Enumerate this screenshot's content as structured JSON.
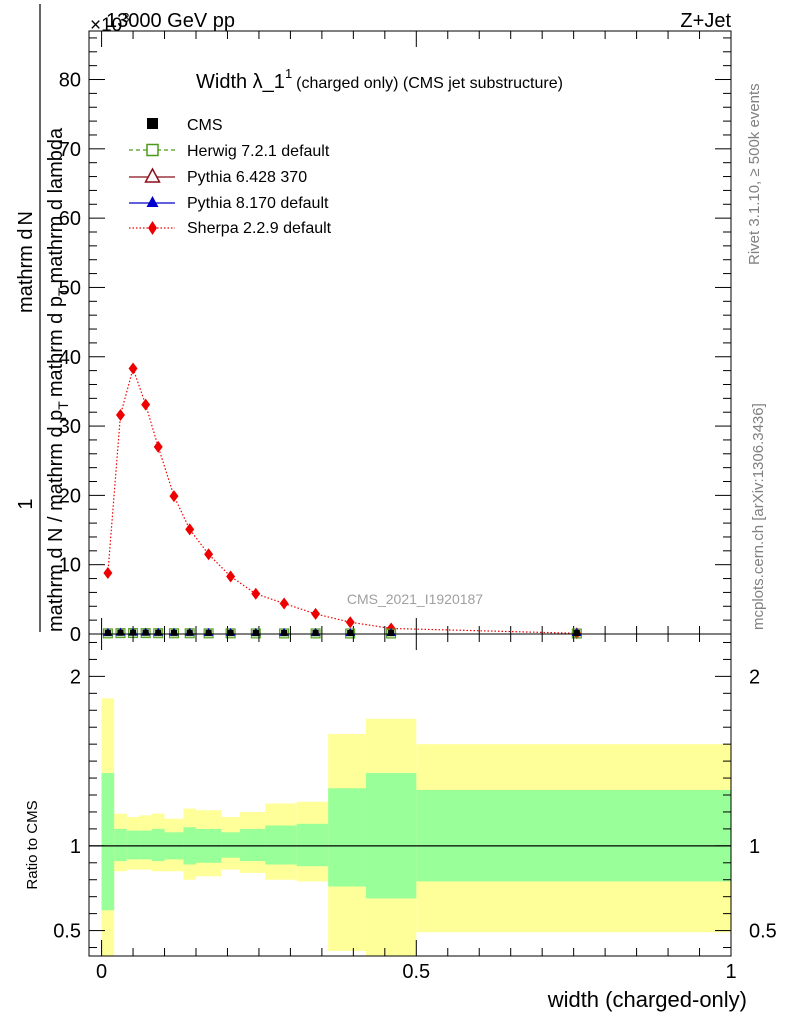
{
  "header": {
    "left": "13000 GeV pp",
    "right": "Z+Jet",
    "exponent": "×10",
    "exponent_power": "3"
  },
  "side_labels": {
    "rivet": "Rivet 3.1.10, ≥ 500k events",
    "mcplots": "mcplots.cern.ch [arXiv:1306.3436]"
  },
  "watermark": "CMS_2021_I1920187",
  "chart_data": [
    {
      "type": "line",
      "title": "Width λ_1",
      "title_sup": "1",
      "title_suffix": "(charged only) (CMS jet substructure)",
      "ylabel_parts": [
        "1",
        "mathrm d N / mathrm d p",
        "T",
        "mathrm d p",
        "T",
        "mathrm d lambda",
        "mathrm d",
        "N"
      ],
      "ylim": [
        0,
        87
      ],
      "yticks": [
        0,
        10,
        20,
        30,
        40,
        50,
        60,
        70,
        80
      ],
      "xlim": [
        -0.02,
        1.0
      ],
      "legend_position": "top-left",
      "legend": [
        {
          "name": "CMS",
          "color": "#000000",
          "marker": "square-filled",
          "line": "none"
        },
        {
          "name": "Herwig 7.2.1 default",
          "color": "#4d9a1a",
          "marker": "square-open",
          "line": "dashed"
        },
        {
          "name": "Pythia 6.428 370",
          "color": "#8b0f1a",
          "marker": "triangle-open",
          "line": "solid"
        },
        {
          "name": "Pythia 8.170 default",
          "color": "#0000cc",
          "marker": "triangle-filled",
          "line": "solid"
        },
        {
          "name": "Sherpa 2.2.9 default",
          "color": "#ee0000",
          "marker": "diamond",
          "line": "dotted"
        }
      ],
      "series": [
        {
          "name": "Sherpa 2.2.9 default",
          "color": "#ee0000",
          "x": [
            0.01,
            0.03,
            0.05,
            0.07,
            0.09,
            0.115,
            0.14,
            0.17,
            0.205,
            0.245,
            0.29,
            0.34,
            0.395,
            0.46,
            0.755
          ],
          "y": [
            8.8,
            31.6,
            38.3,
            33.1,
            27.0,
            19.9,
            15.1,
            11.5,
            8.3,
            5.8,
            4.4,
            2.9,
            1.7,
            0.8,
            0.1
          ]
        },
        {
          "name": "CMS",
          "color": "#000000",
          "x": [
            0.01,
            0.03,
            0.05,
            0.07,
            0.09,
            0.115,
            0.14,
            0.17,
            0.205,
            0.245,
            0.29,
            0.34,
            0.395,
            0.46,
            0.755
          ],
          "y": [
            0.02,
            0.05,
            0.06,
            0.05,
            0.04,
            0.03,
            0.03,
            0.02,
            0.02,
            0.01,
            0.01,
            0.01,
            0.0,
            0.0,
            0.0
          ]
        }
      ]
    },
    {
      "type": "area",
      "ylabel": "Ratio to CMS",
      "ylim": [
        0.35,
        2.25
      ],
      "yticks": [
        0.5,
        1,
        2
      ],
      "ytick_labels": [
        "0.5",
        "1",
        "2"
      ],
      "xlim": [
        -0.02,
        1.0
      ],
      "xticks": [
        0,
        0.5,
        1
      ],
      "xtick_labels": [
        "0",
        "0.5",
        "1"
      ],
      "xlabel": "width (charged-only)",
      "band_colors": {
        "outer": "#ffff99",
        "inner": "#99ff99",
        "reference_line": "#000000"
      },
      "bins": [
        {
          "x0": 0.0,
          "x1": 0.02,
          "outer": [
            0.3,
            1.87
          ],
          "inner": [
            0.62,
            1.43
          ]
        },
        {
          "x0": 0.02,
          "x1": 0.04,
          "outer": [
            0.85,
            1.19
          ],
          "inner": [
            0.91,
            1.1
          ]
        },
        {
          "x0": 0.04,
          "x1": 0.06,
          "outer": [
            0.86,
            1.17
          ],
          "inner": [
            0.92,
            1.09
          ]
        },
        {
          "x0": 0.06,
          "x1": 0.08,
          "outer": [
            0.86,
            1.18
          ],
          "inner": [
            0.92,
            1.09
          ]
        },
        {
          "x0": 0.08,
          "x1": 0.1,
          "outer": [
            0.85,
            1.19
          ],
          "inner": [
            0.91,
            1.1
          ]
        },
        {
          "x0": 0.1,
          "x1": 0.13,
          "outer": [
            0.85,
            1.16
          ],
          "inner": [
            0.92,
            1.08
          ]
        },
        {
          "x0": 0.13,
          "x1": 0.15,
          "outer": [
            0.8,
            1.22
          ],
          "inner": [
            0.89,
            1.11
          ]
        },
        {
          "x0": 0.15,
          "x1": 0.19,
          "outer": [
            0.82,
            1.21
          ],
          "inner": [
            0.9,
            1.1
          ]
        },
        {
          "x0": 0.19,
          "x1": 0.22,
          "outer": [
            0.86,
            1.17
          ],
          "inner": [
            0.93,
            1.08
          ]
        },
        {
          "x0": 0.22,
          "x1": 0.26,
          "outer": [
            0.84,
            1.2
          ],
          "inner": [
            0.91,
            1.1
          ]
        },
        {
          "x0": 0.26,
          "x1": 0.31,
          "outer": [
            0.8,
            1.25
          ],
          "inner": [
            0.89,
            1.12
          ]
        },
        {
          "x0": 0.31,
          "x1": 0.36,
          "outer": [
            0.79,
            1.26
          ],
          "inner": [
            0.88,
            1.13
          ]
        },
        {
          "x0": 0.36,
          "x1": 0.42,
          "outer": [
            0.38,
            1.66
          ],
          "inner": [
            0.76,
            1.34
          ]
        },
        {
          "x0": 0.42,
          "x1": 0.5,
          "outer": [
            0.35,
            1.75
          ],
          "inner": [
            0.69,
            1.43
          ]
        },
        {
          "x0": 0.5,
          "x1": 1.0,
          "outer": [
            0.49,
            1.6
          ],
          "inner": [
            0.79,
            1.33
          ]
        }
      ]
    }
  ]
}
